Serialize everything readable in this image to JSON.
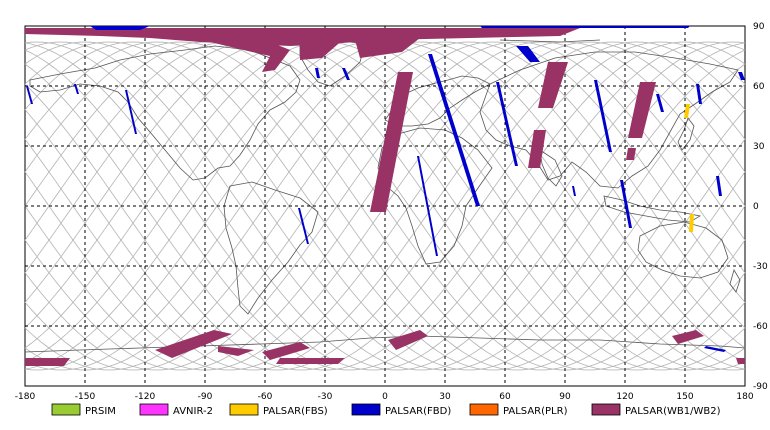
{
  "map": {
    "lon_ticks": [
      "-180",
      "-150",
      "-120",
      "-90",
      "-60",
      "-30",
      "0",
      "30",
      "60",
      "90",
      "120",
      "150",
      "180"
    ],
    "lat_ticks": [
      "90",
      "60",
      "30",
      "0",
      "-30",
      "-60",
      "-90"
    ]
  },
  "legend": [
    {
      "label": "PRSIM",
      "color": "#99cc33"
    },
    {
      "label": "AVNIR-2",
      "color": "#ff33ff"
    },
    {
      "label": "PALSAR(FBS)",
      "color": "#ffcc00"
    },
    {
      "label": "PALSAR(FBD)",
      "color": "#0000cc"
    },
    {
      "label": "PALSAR(PLR)",
      "color": "#ff6600"
    },
    {
      "label": "PALSAR(WB1/WB2)",
      "color": "#993366"
    }
  ],
  "colors": {
    "background": "#ffffff",
    "grid": "#000000",
    "orbit": "#b3b3b3",
    "coast": "#555555",
    "fbd": "#0000cc",
    "wb": "#993366",
    "fbs": "#ffcc00"
  }
}
